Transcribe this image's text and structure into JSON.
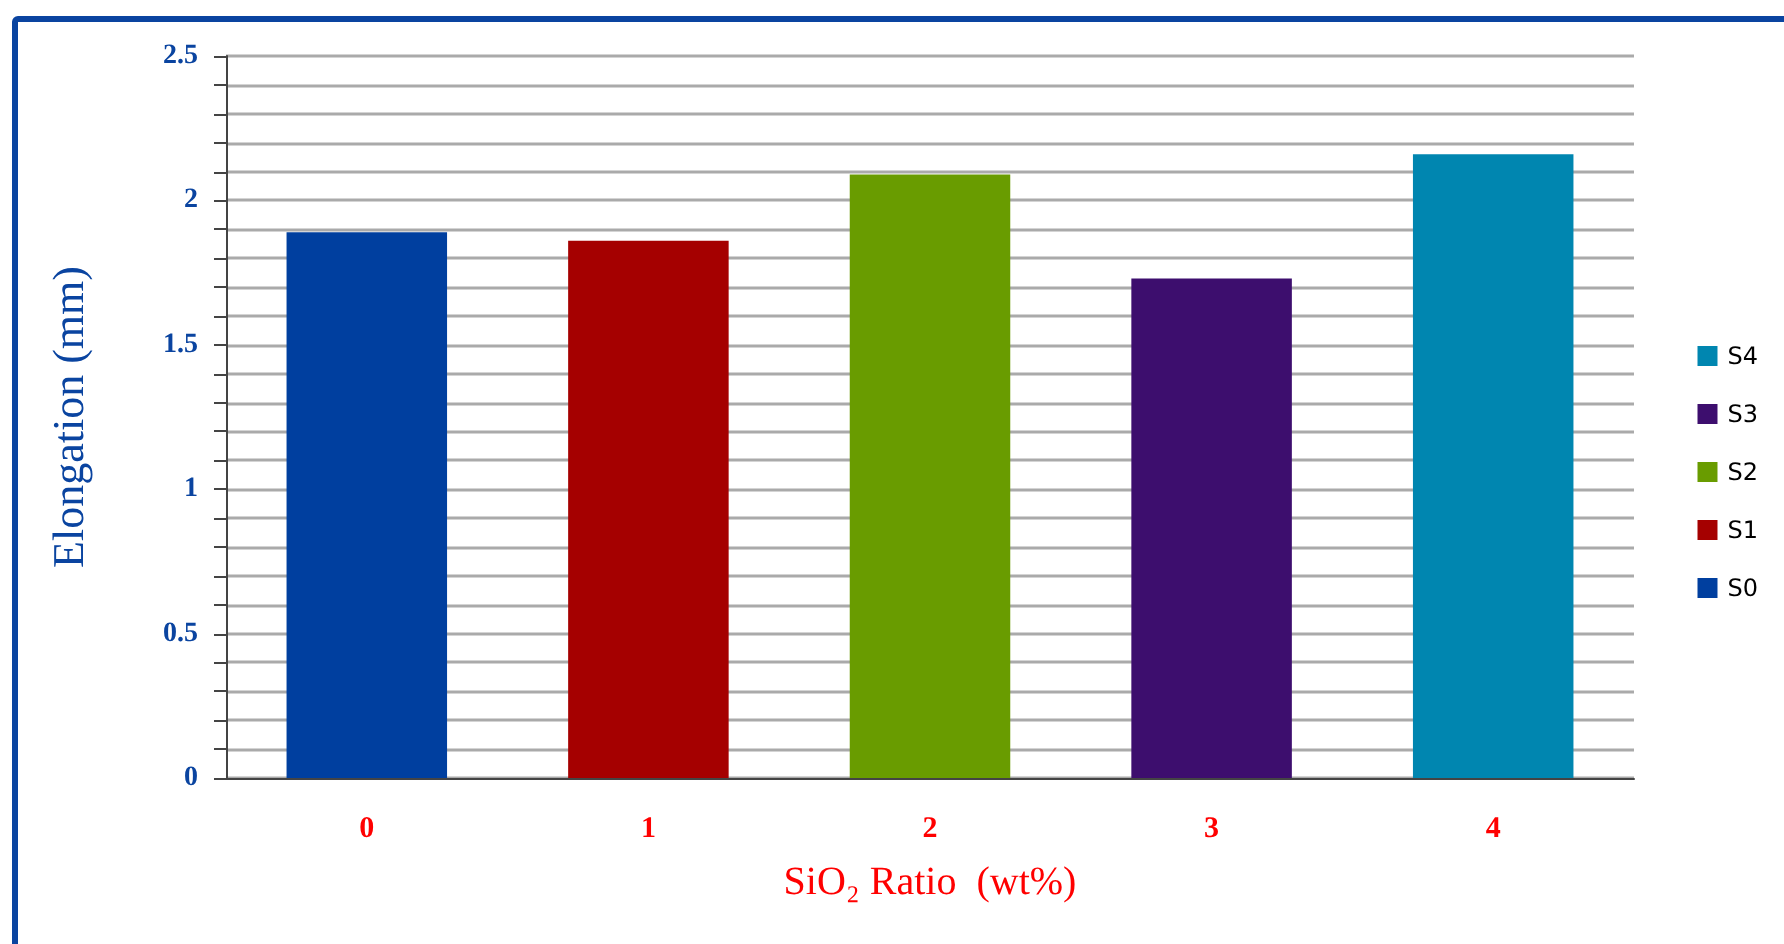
{
  "chart_data": {
    "type": "bar",
    "xlabel": "SiO₂ Ratio  (wt%)",
    "ylabel": "Elongation (mm)",
    "categories": [
      "0",
      "1",
      "2",
      "3",
      "4"
    ],
    "series": [
      {
        "name": "S0",
        "color": "#003f9f",
        "values": [
          1.89,
          null,
          null,
          null,
          null
        ]
      },
      {
        "name": "S1",
        "color": "#a50000",
        "values": [
          null,
          1.86,
          null,
          null,
          null
        ]
      },
      {
        "name": "S2",
        "color": "#699c00",
        "values": [
          null,
          null,
          2.09,
          null,
          null
        ]
      },
      {
        "name": "S3",
        "color": "#3d0e6e",
        "values": [
          null,
          null,
          null,
          1.73,
          null
        ]
      },
      {
        "name": "S4",
        "color": "#0086b0",
        "values": [
          null,
          null,
          null,
          null,
          2.16
        ]
      }
    ],
    "ylim": [
      0,
      2.5
    ],
    "yticks": [
      0,
      {
        "value": 0.1,
        "label": null
      },
      {
        "value": 0.2,
        "label": null
      },
      {
        "value": 0.3,
        "label": null
      },
      {
        "value": 0.4,
        "label": null
      },
      0.5,
      {
        "value": 0.6,
        "label": null
      },
      {
        "value": 0.7,
        "label": null
      },
      {
        "value": 0.8,
        "label": null
      },
      {
        "value": 0.9,
        "label": null
      },
      1,
      {
        "value": 1.1,
        "label": null
      },
      {
        "value": 1.2,
        "label": null
      },
      {
        "value": 1.3,
        "label": null
      },
      {
        "value": 1.4,
        "label": null
      },
      1.5,
      {
        "value": 1.6,
        "label": null
      },
      {
        "value": 1.7,
        "label": null
      },
      {
        "value": 1.8,
        "label": null
      },
      {
        "value": 1.9,
        "label": null
      },
      2,
      {
        "value": 2.1,
        "label": null
      },
      {
        "value": 2.2,
        "label": null
      },
      {
        "value": 2.3,
        "label": null
      },
      {
        "value": 2.4,
        "label": null
      },
      2.5
    ],
    "grid": "y",
    "legend": "right"
  }
}
